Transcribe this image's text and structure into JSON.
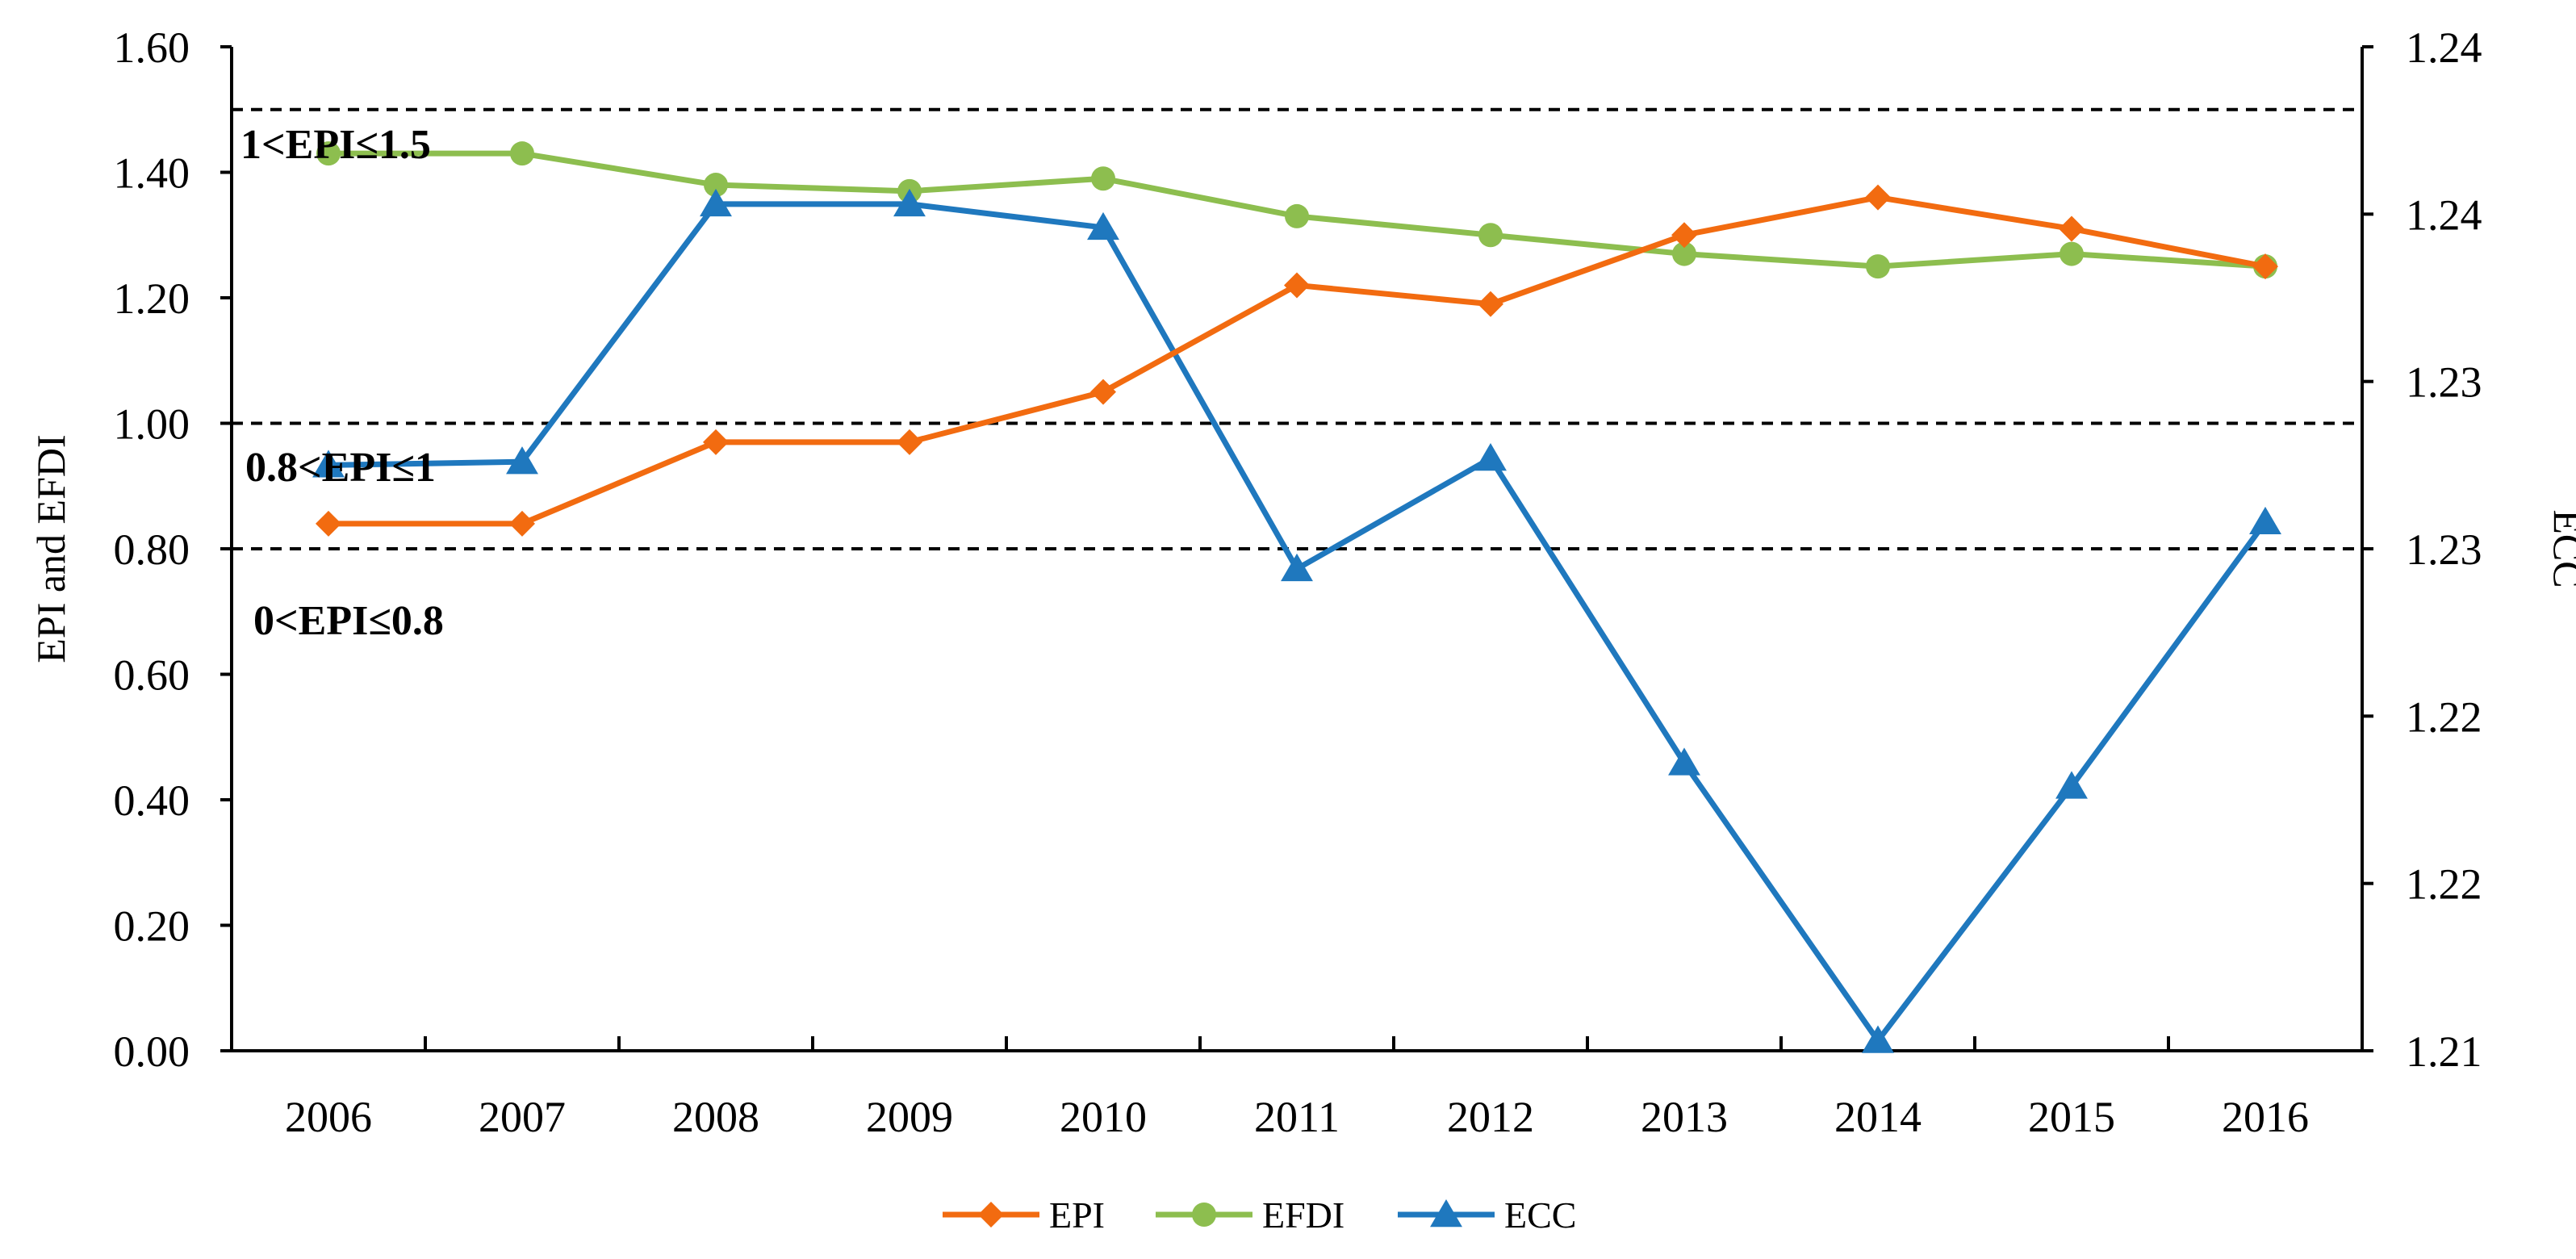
{
  "chart_data": {
    "type": "line",
    "title": "",
    "categories": [
      "2006",
      "2007",
      "2008",
      "2009",
      "2010",
      "2011",
      "2012",
      "2013",
      "2014",
      "2015",
      "2016"
    ],
    "ylabel": "EPI and EFDI",
    "ylabel_right": "ECC",
    "ylim": [
      0,
      1.6
    ],
    "y_ticks": [
      "0.00",
      "0.20",
      "0.40",
      "0.60",
      "0.80",
      "1.00",
      "1.20",
      "1.40",
      "1.60"
    ],
    "y2lim": [
      1.21,
      1.24
    ],
    "y2_ticks": [
      "1.21",
      "1.22",
      "1.22",
      "1.23",
      "1.23",
      "1.24",
      "1.24"
    ],
    "series": [
      {
        "name": "EPI",
        "axis": "left",
        "color": "#F26B10",
        "marker": "diamond",
        "values": [
          0.84,
          0.84,
          0.97,
          0.97,
          1.05,
          1.22,
          1.19,
          1.3,
          1.36,
          1.31,
          1.25
        ]
      },
      {
        "name": "EFDI",
        "axis": "left",
        "color": "#8DBE4F",
        "marker": "circle",
        "values": [
          1.43,
          1.43,
          1.38,
          1.37,
          1.39,
          1.33,
          1.3,
          1.27,
          1.25,
          1.27,
          1.25
        ]
      },
      {
        "name": "ECC",
        "axis": "right",
        "color": "#1F78BE",
        "marker": "triangle",
        "values": [
          1.2275,
          1.2276,
          1.2353,
          1.2353,
          1.2346,
          1.2244,
          1.2277,
          1.2186,
          1.2103,
          1.2179,
          1.2258
        ]
      }
    ],
    "thresholds": [
      1.5,
      1.0,
      0.8
    ],
    "annotations": [
      "1<EPI≤1.5",
      "0.8<EPI≤1",
      "0<EPI≤0.8"
    ],
    "legend": [
      "EPI",
      "EFDI",
      "ECC"
    ],
    "legend_position": "bottom-center",
    "grid": false
  }
}
